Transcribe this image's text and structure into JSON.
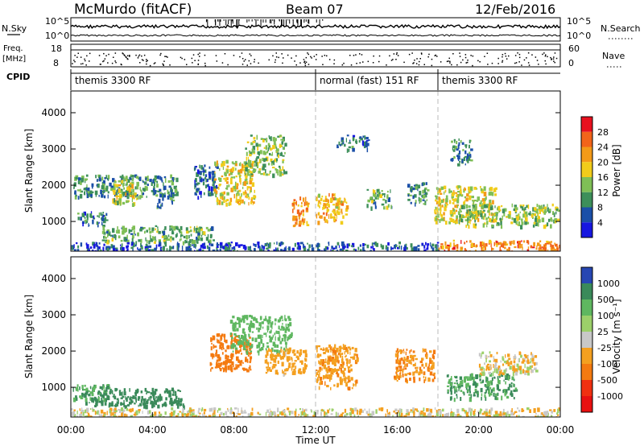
{
  "header": {
    "station": "McMurdo (fitACF)",
    "beam": "Beam 07",
    "date": "12/Feb/2016"
  },
  "status_panels": {
    "nsky_label": "N.Sky",
    "nsky_ticks": [
      "10^5",
      "10^0"
    ],
    "nsearch_label": "N.Search",
    "nsearch_ticks": [
      "10^5",
      "10^0"
    ],
    "freq_label_1": "Freq.",
    "freq_label_2": "[MHz]",
    "freq_ticks": [
      "18",
      "8"
    ],
    "nave_label": "Nave",
    "nave_ticks": [
      "60",
      "0"
    ],
    "cpid_label": "CPID",
    "cpid_modes": [
      {
        "name": "themis 3300 RF",
        "start_h": 0,
        "end_h": 12
      },
      {
        "name": "normal (fast) 151 RF",
        "start_h": 12,
        "end_h": 18
      },
      {
        "name": "themis 3300 RF",
        "start_h": 18,
        "end_h": 24
      }
    ]
  },
  "x_axis": {
    "label": "Time UT",
    "ticks": [
      "00:00",
      "04:00",
      "08:00",
      "12:00",
      "16:00",
      "20:00",
      "00:00"
    ],
    "range_h": [
      0,
      24
    ]
  },
  "panels": [
    {
      "id": "power",
      "ylabel": "Slant Range [km]",
      "yticks": [
        "4000",
        "3000",
        "2000",
        "1000"
      ],
      "colorbar_label": "Power [dB]",
      "colorbar_ticks": [
        "28",
        "24",
        "20",
        "16",
        "12",
        "8",
        "4"
      ],
      "colorbar_colors": [
        "#e8101e",
        "#f2641a",
        "#f39a18",
        "#f1cc1a",
        "#7fbf56",
        "#3d8f5a",
        "#1b4fa8",
        "#1717e0"
      ]
    },
    {
      "id": "velocity",
      "ylabel": "Slant Range [km]",
      "yticks": [
        "4000",
        "3000",
        "2000",
        "1000"
      ],
      "colorbar_label": "Velocity [m s⁻¹]",
      "colorbar_ticks": [
        "1000",
        "500",
        "100",
        "25",
        "-25",
        "-100",
        "-500",
        "-1000"
      ],
      "colorbar_colors": [
        "#2747b3",
        "#3a8a5a",
        "#5fb760",
        "#9cd06a",
        "#c8c8c8",
        "#f4a020",
        "#f47a10",
        "#f03010",
        "#e81010"
      ]
    }
  ],
  "chart_data": [
    {
      "type": "heatmap",
      "title": "Power [dB]",
      "xlabel": "Time UT",
      "ylabel": "Slant Range [km]",
      "x_range_h": [
        0,
        24
      ],
      "y_range_km": [
        180,
        4600
      ],
      "color_range_db": [
        0,
        30
      ],
      "regions": [
        {
          "t0": 0.0,
          "t1": 5.2,
          "r0": 1700,
          "r1": 2300,
          "value": 10
        },
        {
          "t0": 0.3,
          "t1": 1.8,
          "r0": 900,
          "r1": 1300,
          "value": 8
        },
        {
          "t0": 1.5,
          "t1": 7.0,
          "r0": 450,
          "r1": 900,
          "value": 12
        },
        {
          "t0": 2.0,
          "t1": 3.2,
          "r0": 1500,
          "r1": 2200,
          "value": 16
        },
        {
          "t0": 4.2,
          "t1": 5.0,
          "r0": 1400,
          "r1": 1900,
          "value": 9
        },
        {
          "t0": 6.0,
          "t1": 7.2,
          "r0": 1700,
          "r1": 2600,
          "value": 7
        },
        {
          "t0": 7.0,
          "t1": 9.0,
          "r0": 1500,
          "r1": 2700,
          "value": 18
        },
        {
          "t0": 8.5,
          "t1": 10.5,
          "r0": 2300,
          "r1": 3400,
          "value": 13
        },
        {
          "t0": 10.8,
          "t1": 11.6,
          "r0": 900,
          "r1": 1700,
          "value": 22
        },
        {
          "t0": 12.0,
          "t1": 13.5,
          "r0": 1000,
          "r1": 1800,
          "value": 20
        },
        {
          "t0": 13.0,
          "t1": 14.6,
          "r0": 3000,
          "r1": 3400,
          "value": 8
        },
        {
          "t0": 14.5,
          "t1": 15.7,
          "r0": 1400,
          "r1": 1900,
          "value": 12
        },
        {
          "t0": 16.5,
          "t1": 17.5,
          "r0": 1500,
          "r1": 2100,
          "value": 10
        },
        {
          "t0": 17.8,
          "t1": 20.8,
          "r0": 1000,
          "r1": 2000,
          "value": 17
        },
        {
          "t0": 18.6,
          "t1": 19.6,
          "r0": 2600,
          "r1": 3300,
          "value": 9
        },
        {
          "t0": 19.0,
          "t1": 23.9,
          "r0": 900,
          "r1": 1500,
          "value": 14
        },
        {
          "t0": 18.0,
          "t1": 24.0,
          "r0": 200,
          "r1": 500,
          "value": 24
        },
        {
          "t0": 0.0,
          "t1": 18.0,
          "r0": 200,
          "r1": 450,
          "value": 6
        }
      ]
    },
    {
      "type": "heatmap",
      "title": "Velocity [m s⁻¹]",
      "xlabel": "Time UT",
      "ylabel": "Slant Range [km]",
      "x_range_h": [
        0,
        24
      ],
      "y_range_km": [
        180,
        4600
      ],
      "color_range_ms": [
        -1000,
        1000
      ],
      "regions": [
        {
          "t0": 0.5,
          "t1": 5.5,
          "r0": 500,
          "r1": 1000,
          "value": 400
        },
        {
          "t0": 0.0,
          "t1": 1.8,
          "r0": 700,
          "r1": 1100,
          "value": 300
        },
        {
          "t0": 6.8,
          "t1": 8.8,
          "r0": 1500,
          "r1": 2500,
          "value": -500
        },
        {
          "t0": 7.8,
          "t1": 10.8,
          "r0": 2000,
          "r1": 3000,
          "value": 200
        },
        {
          "t0": 9.5,
          "t1": 11.5,
          "r0": 1400,
          "r1": 2100,
          "value": -150
        },
        {
          "t0": 12.0,
          "t1": 14.0,
          "r0": 1000,
          "r1": 2200,
          "value": -250
        },
        {
          "t0": 15.8,
          "t1": 17.8,
          "r0": 1200,
          "r1": 2100,
          "value": -300
        },
        {
          "t0": 18.4,
          "t1": 21.8,
          "r0": 700,
          "r1": 1400,
          "value": 300
        },
        {
          "t0": 20.0,
          "t1": 22.8,
          "r0": 1400,
          "r1": 2000,
          "value": -50
        },
        {
          "t0": 0.0,
          "t1": 24.0,
          "r0": 200,
          "r1": 450,
          "value": -40
        }
      ]
    }
  ]
}
